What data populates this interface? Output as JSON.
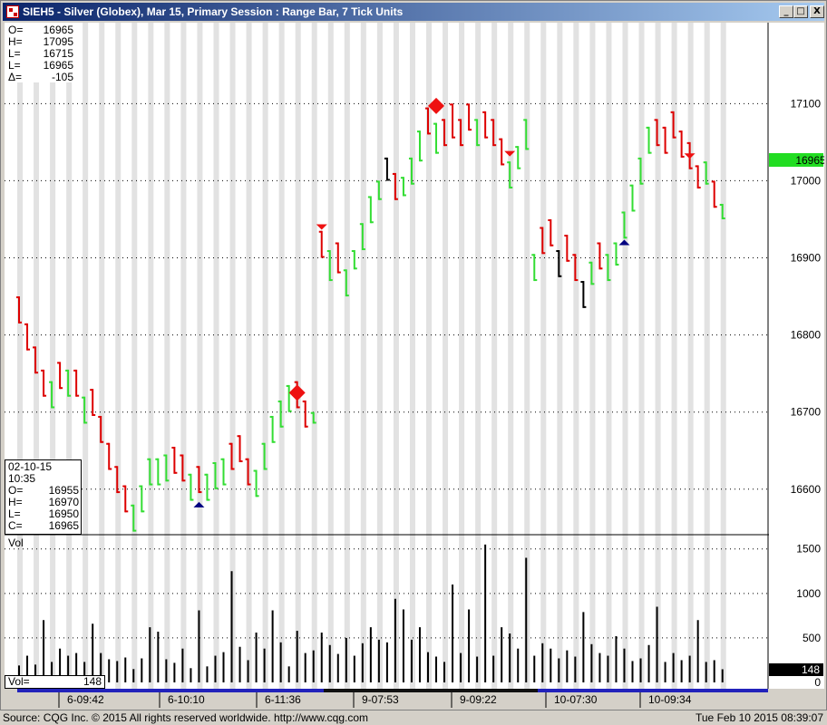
{
  "window": {
    "title": "SIEH5 - Silver (Globex), Mar 15,  Primary Session : Range Bar, 7 Tick Units",
    "buttons": {
      "minimize": "_",
      "maximize": "□",
      "close": "X"
    }
  },
  "ohlc_box": [
    {
      "label": "O=",
      "value": "16965"
    },
    {
      "label": "H=",
      "value": "17095"
    },
    {
      "label": "L=",
      "value": "16715"
    },
    {
      "label": "L=",
      "value": "16965"
    },
    {
      "label": "Δ=",
      "value": "-105"
    }
  ],
  "cursor_box": {
    "date": "02-10-15",
    "time": "10:35",
    "rows": [
      {
        "label": "O=",
        "value": "16955"
      },
      {
        "label": "H=",
        "value": "16970"
      },
      {
        "label": "L=",
        "value": "16950"
      },
      {
        "label": "C=",
        "value": "16965"
      }
    ]
  },
  "last_price_tag": "16965",
  "volume": {
    "panel_label": "Vol",
    "readout_label": "Vol=",
    "readout_value": "148",
    "last_tag": "148"
  },
  "colors": {
    "up": "#33dd33",
    "down": "#dd0000",
    "neutral": "#000000",
    "band": "#e2e2e2",
    "grid": "#000000",
    "marker_red": "#ee1111",
    "marker_blue": "#000080",
    "last_tag": "#22dd22",
    "session_bar": "#2222bb"
  },
  "chart_data": {
    "type": "range-bar",
    "price_axis": {
      "ticks": [
        16600,
        16700,
        16800,
        16900,
        17000,
        17100
      ],
      "range": [
        16541,
        17205
      ]
    },
    "volume_axis": {
      "ticks": [
        0,
        500,
        1000,
        1500
      ],
      "range": [
        0,
        1650
      ]
    },
    "time_labels": [
      "6-09:42",
      "6-10:10",
      "6-11:36",
      "9-07:53",
      "9-09:22",
      "10-07:30",
      "10-09:34"
    ],
    "bars": [
      {
        "high": 16850,
        "low": 16815,
        "dir": "down",
        "vol": 190
      },
      {
        "high": 16815,
        "low": 16780,
        "dir": "down",
        "vol": 300
      },
      {
        "high": 16785,
        "low": 16750,
        "dir": "down",
        "vol": 200
      },
      {
        "high": 16755,
        "low": 16720,
        "dir": "down",
        "vol": 700
      },
      {
        "high": 16740,
        "low": 16705,
        "dir": "up",
        "vol": 230
      },
      {
        "high": 16765,
        "low": 16730,
        "dir": "down",
        "vol": 380
      },
      {
        "high": 16755,
        "low": 16720,
        "dir": "up",
        "vol": 300
      },
      {
        "high": 16755,
        "low": 16720,
        "dir": "down",
        "vol": 330
      },
      {
        "high": 16720,
        "low": 16685,
        "dir": "up",
        "vol": 230
      },
      {
        "high": 16730,
        "low": 16695,
        "dir": "down",
        "vol": 660
      },
      {
        "high": 16695,
        "low": 16660,
        "dir": "down",
        "vol": 330
      },
      {
        "high": 16660,
        "low": 16625,
        "dir": "down",
        "vol": 260
      },
      {
        "high": 16630,
        "low": 16595,
        "dir": "down",
        "vol": 240
      },
      {
        "high": 16605,
        "low": 16570,
        "dir": "down",
        "vol": 280
      },
      {
        "high": 16580,
        "low": 16545,
        "dir": "up",
        "vol": 150
      },
      {
        "high": 16605,
        "low": 16570,
        "dir": "up",
        "vol": 270
      },
      {
        "high": 16640,
        "low": 16605,
        "dir": "up",
        "vol": 620
      },
      {
        "high": 16640,
        "low": 16605,
        "dir": "up",
        "vol": 570
      },
      {
        "high": 16645,
        "low": 16610,
        "dir": "up",
        "vol": 260
      },
      {
        "high": 16655,
        "low": 16620,
        "dir": "down",
        "vol": 220
      },
      {
        "high": 16645,
        "low": 16610,
        "dir": "down",
        "vol": 380
      },
      {
        "high": 16620,
        "low": 16585,
        "dir": "up",
        "vol": 160
      },
      {
        "high": 16630,
        "low": 16595,
        "dir": "down",
        "vol": 810
      },
      {
        "high": 16620,
        "low": 16585,
        "dir": "up",
        "vol": 180
      },
      {
        "high": 16635,
        "low": 16600,
        "dir": "up",
        "vol": 300
      },
      {
        "high": 16640,
        "low": 16605,
        "dir": "up",
        "vol": 340
      },
      {
        "high": 16660,
        "low": 16625,
        "dir": "down",
        "vol": 1250
      },
      {
        "high": 16670,
        "low": 16635,
        "dir": "down",
        "vol": 400
      },
      {
        "high": 16640,
        "low": 16605,
        "dir": "down",
        "vol": 250
      },
      {
        "high": 16625,
        "low": 16590,
        "dir": "up",
        "vol": 560
      },
      {
        "high": 16660,
        "low": 16625,
        "dir": "up",
        "vol": 380
      },
      {
        "high": 16695,
        "low": 16660,
        "dir": "up",
        "vol": 810
      },
      {
        "high": 16715,
        "low": 16680,
        "dir": "up",
        "vol": 450
      },
      {
        "high": 16735,
        "low": 16700,
        "dir": "up",
        "vol": 180
      },
      {
        "high": 16740,
        "low": 16705,
        "dir": "down",
        "vol": 580
      },
      {
        "high": 16715,
        "low": 16680,
        "dir": "down",
        "vol": 330
      },
      {
        "high": 16700,
        "low": 16685,
        "dir": "up",
        "vol": 360
      },
      {
        "high": 16935,
        "low": 16900,
        "dir": "down",
        "vol": 560
      },
      {
        "high": 16910,
        "low": 16870,
        "dir": "up",
        "vol": 420
      },
      {
        "high": 16920,
        "low": 16880,
        "dir": "down",
        "vol": 320
      },
      {
        "high": 16885,
        "low": 16850,
        "dir": "up",
        "vol": 500
      },
      {
        "high": 16910,
        "low": 16885,
        "dir": "up",
        "vol": 300
      },
      {
        "high": 16945,
        "low": 16910,
        "dir": "up",
        "vol": 440
      },
      {
        "high": 16980,
        "low": 16945,
        "dir": "up",
        "vol": 620
      },
      {
        "high": 17000,
        "low": 16975,
        "dir": "up",
        "vol": 480
      },
      {
        "high": 17030,
        "low": 17000,
        "dir": "neutral",
        "vol": 450
      },
      {
        "high": 17010,
        "low": 16975,
        "dir": "down",
        "vol": 940
      },
      {
        "high": 17005,
        "low": 16980,
        "dir": "up",
        "vol": 820
      },
      {
        "high": 17030,
        "low": 16995,
        "dir": "up",
        "vol": 480
      },
      {
        "high": 17065,
        "low": 17025,
        "dir": "up",
        "vol": 620
      },
      {
        "high": 17095,
        "low": 17060,
        "dir": "down",
        "vol": 340
      },
      {
        "high": 17075,
        "low": 17035,
        "dir": "up",
        "vol": 290
      },
      {
        "high": 17080,
        "low": 17045,
        "dir": "down",
        "vol": 230
      },
      {
        "high": 17100,
        "low": 17055,
        "dir": "down",
        "vol": 1100
      },
      {
        "high": 17080,
        "low": 17045,
        "dir": "down",
        "vol": 330
      },
      {
        "high": 17100,
        "low": 17065,
        "dir": "down",
        "vol": 820
      },
      {
        "high": 17080,
        "low": 17045,
        "dir": "up",
        "vol": 290
      },
      {
        "high": 17090,
        "low": 17055,
        "dir": "down",
        "vol": 1550
      },
      {
        "high": 17080,
        "low": 17045,
        "dir": "down",
        "vol": 300
      },
      {
        "high": 17055,
        "low": 17020,
        "dir": "down",
        "vol": 620
      },
      {
        "high": 17025,
        "low": 16990,
        "dir": "up",
        "vol": 550
      },
      {
        "high": 17045,
        "low": 17015,
        "dir": "up",
        "vol": 380
      },
      {
        "high": 17080,
        "low": 17040,
        "dir": "up",
        "vol": 1400
      },
      {
        "high": 16905,
        "low": 16870,
        "dir": "up",
        "vol": 300
      },
      {
        "high": 16940,
        "low": 16905,
        "dir": "down",
        "vol": 440
      },
      {
        "high": 16950,
        "low": 16915,
        "dir": "down",
        "vol": 380
      },
      {
        "high": 16910,
        "low": 16875,
        "dir": "neutral",
        "vol": 270
      },
      {
        "high": 16930,
        "low": 16895,
        "dir": "down",
        "vol": 360
      },
      {
        "high": 16905,
        "low": 16870,
        "dir": "down",
        "vol": 290
      },
      {
        "high": 16870,
        "low": 16835,
        "dir": "neutral",
        "vol": 790
      },
      {
        "high": 16895,
        "low": 16865,
        "dir": "up",
        "vol": 430
      },
      {
        "high": 16920,
        "low": 16885,
        "dir": "down",
        "vol": 330
      },
      {
        "high": 16905,
        "low": 16870,
        "dir": "up",
        "vol": 300
      },
      {
        "high": 16920,
        "low": 16890,
        "dir": "up",
        "vol": 520
      },
      {
        "high": 16960,
        "low": 16925,
        "dir": "up",
        "vol": 380
      },
      {
        "high": 16995,
        "low": 16960,
        "dir": "up",
        "vol": 240
      },
      {
        "high": 17030,
        "low": 16995,
        "dir": "up",
        "vol": 270
      },
      {
        "high": 17070,
        "low": 17035,
        "dir": "up",
        "vol": 420
      },
      {
        "high": 17080,
        "low": 17045,
        "dir": "down",
        "vol": 850
      },
      {
        "high": 17070,
        "low": 17035,
        "dir": "down",
        "vol": 230
      },
      {
        "high": 17090,
        "low": 17055,
        "dir": "down",
        "vol": 330
      },
      {
        "high": 17065,
        "low": 17030,
        "dir": "down",
        "vol": 250
      },
      {
        "high": 17050,
        "low": 17015,
        "dir": "down",
        "vol": 300
      },
      {
        "high": 17020,
        "low": 16990,
        "dir": "down",
        "vol": 700
      },
      {
        "high": 17025,
        "low": 16995,
        "dir": "up",
        "vol": 230
      },
      {
        "high": 17000,
        "low": 16965,
        "dir": "down",
        "vol": 250
      },
      {
        "high": 16970,
        "low": 16950,
        "dir": "up",
        "vol": 148
      }
    ],
    "markers": [
      {
        "bar": 22,
        "price": 16580,
        "shape": "tri-up",
        "color": "blue"
      },
      {
        "bar": 34,
        "price": 16725,
        "shape": "diamond",
        "color": "red"
      },
      {
        "bar": 37,
        "price": 16940,
        "shape": "tri-down",
        "color": "red"
      },
      {
        "bar": 51,
        "price": 17097,
        "shape": "diamond",
        "color": "red"
      },
      {
        "bar": 60,
        "price": 17035,
        "shape": "tri-down",
        "color": "red"
      },
      {
        "bar": 74,
        "price": 16920,
        "shape": "tri-up",
        "color": "blue"
      },
      {
        "bar": 82,
        "price": 17032,
        "shape": "tri-down",
        "color": "red"
      }
    ]
  },
  "status_bar": {
    "left": "Source: CQG Inc. © 2015 All rights reserved worldwide. http://www.cqg.com",
    "right": "Tue Feb 10 2015 08:39:07"
  }
}
